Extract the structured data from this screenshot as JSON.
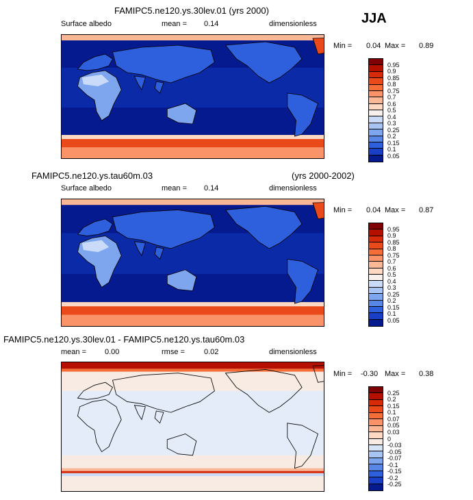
{
  "season": "JJA",
  "chart_data": [
    {
      "type": "heatmap",
      "title": "FAMIPC5.ne120.ys.30lev.01 (yrs 2000)",
      "title_right": "",
      "variable": "Surface albedo",
      "stat_label": "mean",
      "stat_value": "0.14",
      "stat2_label": "",
      "stat2_value": "",
      "units": "dimensionless",
      "min_label": "Min =",
      "min_value": "0.04",
      "max_label": "Max =",
      "max_value": "0.89",
      "colorbar": {
        "levels": [
          "0.95",
          "0.9",
          "0.85",
          "0.8",
          "0.75",
          "0.7",
          "0.6",
          "0.5",
          "0.4",
          "0.3",
          "0.25",
          "0.2",
          "0.15",
          "0.1",
          "0.05"
        ],
        "colors": [
          "#7f0000",
          "#b50f00",
          "#d72a08",
          "#ea4a1a",
          "#f56e38",
          "#fa9468",
          "#fcb796",
          "#fdd8c3",
          "#f7f0ed",
          "#c9dbf8",
          "#a7c4f5",
          "#7ea6ef",
          "#5786e6",
          "#2e5fdc",
          "#1a3fc7",
          "#061a8f"
        ]
      }
    },
    {
      "type": "heatmap",
      "title": "FAMIPC5.ne120.ys.tau60m.03",
      "title_right": "(yrs 2000-2002)",
      "variable": "Surface albedo",
      "stat_label": "mean",
      "stat_value": "0.14",
      "stat2_label": "",
      "stat2_value": "",
      "units": "dimensionless",
      "min_label": "Min =",
      "min_value": "0.04",
      "max_label": "Max =",
      "max_value": "0.87",
      "colorbar": {
        "levels": [
          "0.95",
          "0.9",
          "0.85",
          "0.8",
          "0.75",
          "0.7",
          "0.6",
          "0.5",
          "0.4",
          "0.3",
          "0.25",
          "0.2",
          "0.15",
          "0.1",
          "0.05"
        ],
        "colors": [
          "#7f0000",
          "#b50f00",
          "#d72a08",
          "#ea4a1a",
          "#f56e38",
          "#fa9468",
          "#fcb796",
          "#fdd8c3",
          "#f7f0ed",
          "#c9dbf8",
          "#a7c4f5",
          "#7ea6ef",
          "#5786e6",
          "#2e5fdc",
          "#1a3fc7",
          "#061a8f"
        ]
      }
    },
    {
      "type": "heatmap",
      "title": "FAMIPC5.ne120.ys.30lev.01 - FAMIPC5.ne120.ys.tau60m.03",
      "title_right": "",
      "variable": "",
      "stat_label": "mean",
      "stat_value": "0.00",
      "stat2_label": "rmse",
      "stat2_value": "0.02",
      "units": "dimensionless",
      "min_label": "Min =",
      "min_value": "-0.30",
      "max_label": "Max =",
      "max_value": "0.38",
      "colorbar": {
        "levels": [
          "0.25",
          "0.2",
          "0.15",
          "0.1",
          "0.07",
          "0.05",
          "0.03",
          "0",
          "-0.03",
          "-0.05",
          "-0.07",
          "-0.1",
          "-0.15",
          "-0.2",
          "-0.25"
        ],
        "colors": [
          "#7f0000",
          "#b50f00",
          "#d72a08",
          "#ea4a1a",
          "#f56e38",
          "#fa9468",
          "#fcb796",
          "#fdd8c3",
          "#f7ebe4",
          "#d6e4f8",
          "#a7c4f5",
          "#7ea6ef",
          "#5786e6",
          "#2e5fdc",
          "#1a3fc7",
          "#061a8f"
        ]
      }
    }
  ]
}
